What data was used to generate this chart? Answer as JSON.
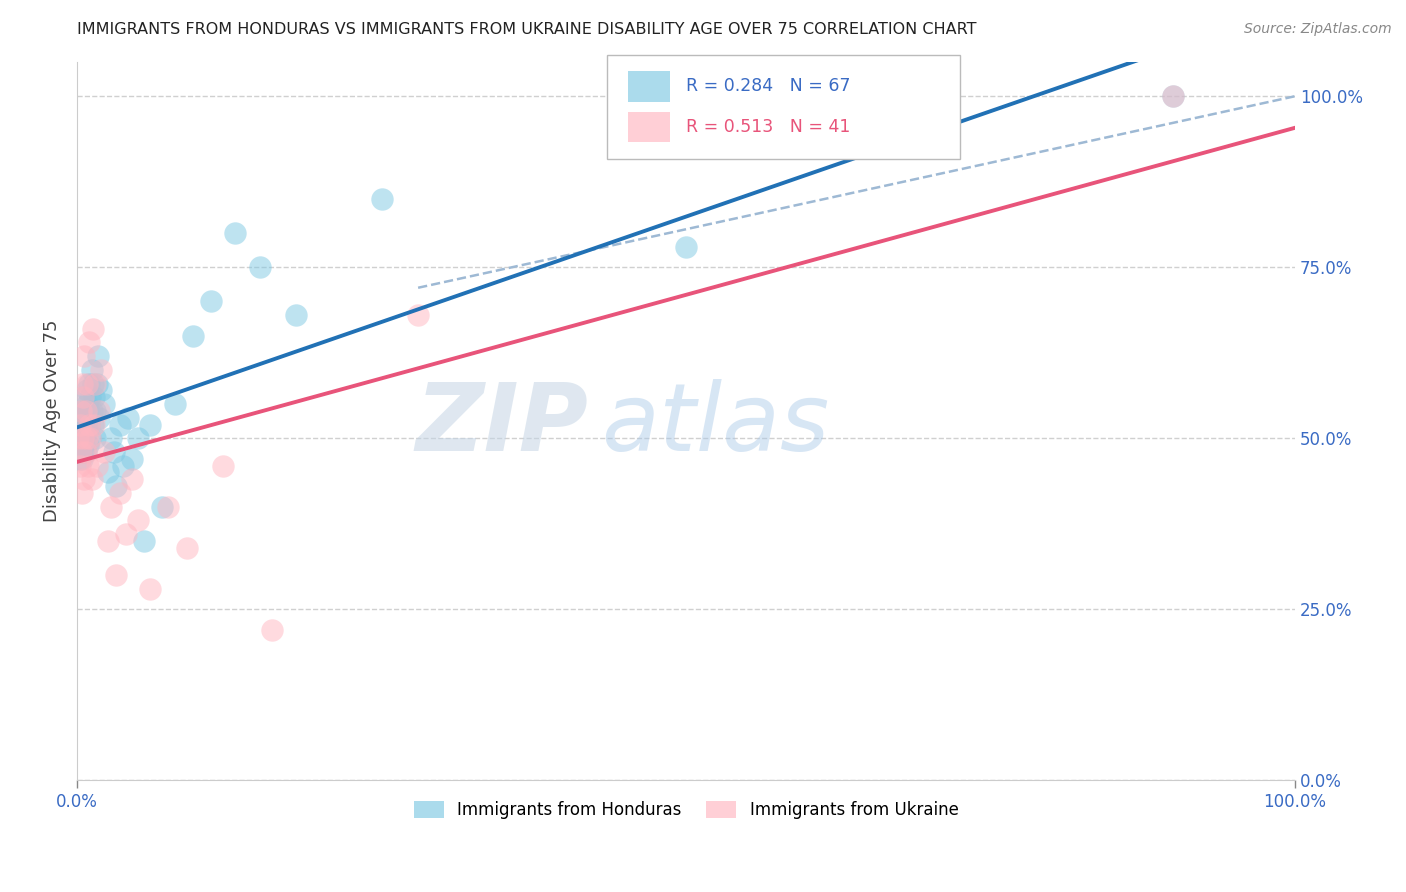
{
  "title": "IMMIGRANTS FROM HONDURAS VS IMMIGRANTS FROM UKRAINE DISABILITY AGE OVER 75 CORRELATION CHART",
  "source": "Source: ZipAtlas.com",
  "ylabel": "Disability Age Over 75",
  "legend_honduras_r": "R = 0.284",
  "legend_honduras_n": "N = 67",
  "legend_ukraine_r": "R = 0.513",
  "legend_ukraine_n": "N = 41",
  "color_honduras": "#7ec8e3",
  "color_ukraine": "#ffb6c1",
  "color_honduras_line": "#2171b5",
  "color_ukraine_line": "#e8547a",
  "color_dashed_line": "#9eb9d4",
  "watermark_zip": "ZIP",
  "watermark_atlas": "atlas",
  "grid_color": "#d0d0d0",
  "honduras_x": [
    0.001,
    0.001,
    0.001,
    0.002,
    0.002,
    0.002,
    0.002,
    0.003,
    0.003,
    0.003,
    0.003,
    0.004,
    0.004,
    0.004,
    0.005,
    0.005,
    0.005,
    0.005,
    0.006,
    0.006,
    0.006,
    0.007,
    0.007,
    0.007,
    0.008,
    0.008,
    0.008,
    0.009,
    0.009,
    0.01,
    0.01,
    0.01,
    0.011,
    0.011,
    0.012,
    0.012,
    0.013,
    0.013,
    0.014,
    0.015,
    0.015,
    0.016,
    0.017,
    0.018,
    0.02,
    0.022,
    0.025,
    0.028,
    0.03,
    0.032,
    0.035,
    0.038,
    0.042,
    0.045,
    0.05,
    0.055,
    0.06,
    0.07,
    0.08,
    0.095,
    0.11,
    0.13,
    0.15,
    0.18,
    0.25,
    0.5,
    0.9
  ],
  "honduras_y": [
    0.5,
    0.52,
    0.48,
    0.51,
    0.49,
    0.53,
    0.47,
    0.5,
    0.52,
    0.54,
    0.48,
    0.51,
    0.53,
    0.47,
    0.5,
    0.52,
    0.56,
    0.48,
    0.51,
    0.53,
    0.49,
    0.52,
    0.54,
    0.48,
    0.55,
    0.51,
    0.57,
    0.53,
    0.49,
    0.54,
    0.52,
    0.58,
    0.5,
    0.56,
    0.54,
    0.6,
    0.52,
    0.58,
    0.56,
    0.5,
    0.54,
    0.58,
    0.62,
    0.53,
    0.57,
    0.55,
    0.45,
    0.5,
    0.48,
    0.43,
    0.52,
    0.46,
    0.53,
    0.47,
    0.5,
    0.35,
    0.52,
    0.4,
    0.55,
    0.65,
    0.7,
    0.8,
    0.75,
    0.68,
    0.85,
    0.78,
    1.0
  ],
  "ukraine_x": [
    0.001,
    0.002,
    0.002,
    0.003,
    0.003,
    0.004,
    0.004,
    0.005,
    0.005,
    0.006,
    0.006,
    0.007,
    0.007,
    0.008,
    0.008,
    0.009,
    0.01,
    0.01,
    0.011,
    0.012,
    0.013,
    0.014,
    0.015,
    0.016,
    0.018,
    0.02,
    0.022,
    0.025,
    0.028,
    0.032,
    0.035,
    0.04,
    0.045,
    0.05,
    0.06,
    0.075,
    0.09,
    0.12,
    0.16,
    0.28,
    0.9
  ],
  "ukraine_y": [
    0.5,
    0.46,
    0.52,
    0.48,
    0.54,
    0.42,
    0.58,
    0.5,
    0.56,
    0.44,
    0.62,
    0.48,
    0.54,
    0.5,
    0.58,
    0.46,
    0.52,
    0.64,
    0.5,
    0.44,
    0.66,
    0.52,
    0.58,
    0.46,
    0.54,
    0.6,
    0.48,
    0.35,
    0.4,
    0.3,
    0.42,
    0.36,
    0.44,
    0.38,
    0.28,
    0.4,
    0.34,
    0.46,
    0.22,
    0.68,
    1.0
  ],
  "xlim": [
    0.0,
    1.0
  ],
  "ylim": [
    0.0,
    1.05
  ],
  "yticks": [
    0.0,
    0.25,
    0.5,
    0.75,
    1.0
  ],
  "ytick_labels_right": [
    "0.0%",
    "25.0%",
    "50.0%",
    "75.0%",
    "100.0%"
  ]
}
